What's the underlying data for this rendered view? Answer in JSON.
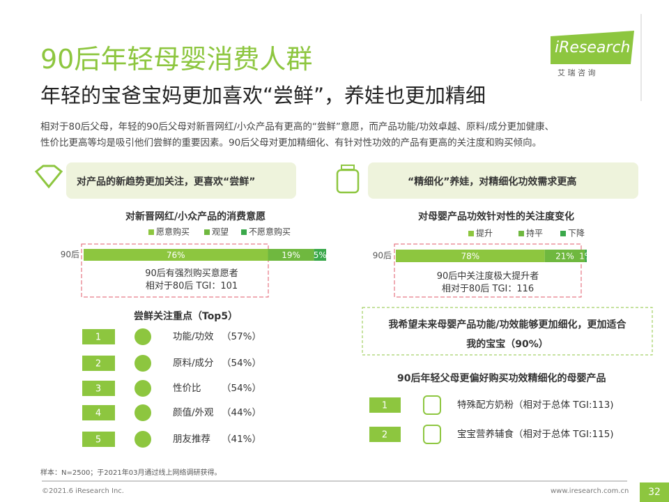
{
  "header": {
    "title": "90后年轻母婴消费人群",
    "subtitle": "年轻的宝爸宝妈更加喜欢“尝鲜”，养娃也更加精细",
    "logo": "iResearch",
    "logo_cn": "艾 瑞 咨 询"
  },
  "intro": [
    "相对于80后父母，年轻的90后父母对新晋网红/小众产品有更高的“尝鲜”意愿，而产品功能/功效卓越、原料/成分更加健康、",
    "性价比更高等均是吸引他们尝鲜的重要因素。90后父母对更加精细化、有针对性功效的产品有更高的关注度和购买倾向。"
  ],
  "left": {
    "banner": "对产品的新趋势更加关注，更喜欢“尝鲜”",
    "chart": {
      "type": "stacked-bar",
      "title": "对新晋网红/小众产品的消费意愿",
      "category": "90后",
      "series": [
        {
          "name": "愿意购买",
          "color": "#8dc63f",
          "values": [
            76
          ],
          "value_labels": [
            "76%"
          ]
        },
        {
          "name": "观望",
          "color": "#6fb83f",
          "values": [
            19
          ],
          "value_labels": [
            "19%"
          ]
        },
        {
          "name": "不愿意购买",
          "color": "#3aa84a",
          "values": [
            5
          ],
          "value_labels": [
            "5%"
          ]
        }
      ],
      "annotation": [
        "90后有强烈购买意愿者",
        "相对于80后 TGI：101"
      ]
    },
    "list_title": "尝鲜关注重点（Top5）",
    "items": [
      {
        "rank": "1",
        "label": "功能/功效",
        "value": "（57%）"
      },
      {
        "rank": "2",
        "label": "原料/成分",
        "value": "（54%）"
      },
      {
        "rank": "3",
        "label": "性价比",
        "value": "（54%）"
      },
      {
        "rank": "4",
        "label": "颜值/外观",
        "value": "（44%）"
      },
      {
        "rank": "5",
        "label": "朋友推荐",
        "value": "（41%）"
      }
    ]
  },
  "right": {
    "banner": "“精细化”养娃，对精细化功效需求更高",
    "chart": {
      "type": "stacked-bar",
      "title": "对母婴产品功效针对性的关注度变化",
      "category": "90后",
      "series": [
        {
          "name": "提升",
          "color": "#8dc63f",
          "values": [
            78
          ],
          "value_labels": [
            "78%"
          ]
        },
        {
          "name": "持平",
          "color": "#6fb83f",
          "values": [
            21
          ],
          "value_labels": [
            "21%"
          ]
        },
        {
          "name": "下降",
          "color": "#3aa84a",
          "values": [
            1
          ],
          "value_labels": [
            "1%"
          ]
        }
      ],
      "annotation": [
        "90后中关注度极大提升者",
        "相对于80后 TGI：116"
      ]
    },
    "highlight": [
      "我希望未来母婴产品功能/功效能够更加细化，更加适合",
      "我的宝宝（90%）"
    ],
    "list_title": "90后年轻父母更偏好购买功效精细化的母婴产品",
    "items": [
      {
        "rank": "1",
        "label": "特殊配方奶粉（相对于总体 TGI:113)"
      },
      {
        "rank": "2",
        "label": "宝宝营养辅食（相对于总体 TGI:115)"
      }
    ]
  },
  "footer": {
    "note": "样本：N=2500；于2021年03月通过线上网络调研获得。",
    "copyright": "©2021.6 iResearch Inc.",
    "url": "www.iresearch.com.cn",
    "page": "32"
  }
}
